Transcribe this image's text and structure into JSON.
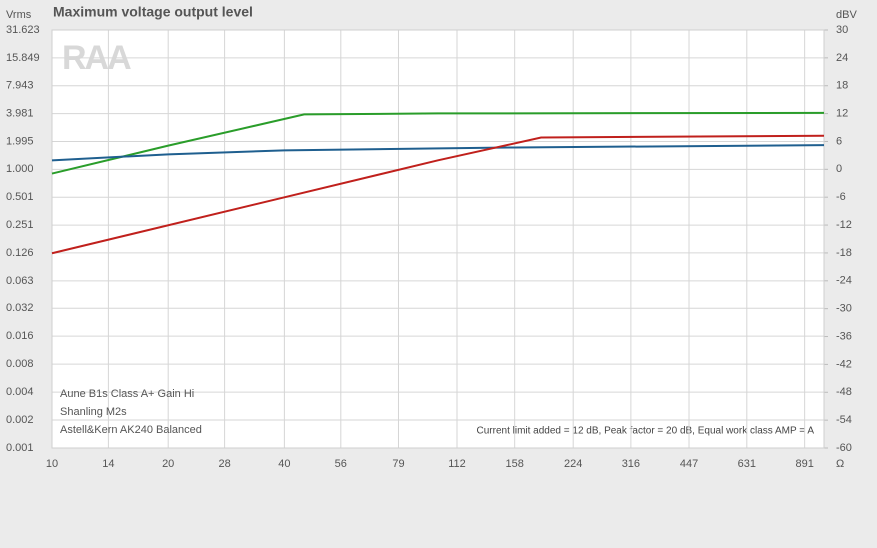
{
  "chart_data": {
    "type": "line",
    "title": "Maximum voltage output level",
    "watermark": "RAA",
    "y_label": "Vrms",
    "y2_label": "dBV",
    "x_label": "Ω",
    "annotation": "Current limit added = 12 dB, Peak factor = 20 dB, Equal work class AMP = A",
    "xlog": true,
    "ylog": true,
    "grid": true,
    "xlim": [
      10,
      1000
    ],
    "xticks": [
      10,
      14,
      20,
      28,
      40,
      56,
      79,
      112,
      158,
      224,
      316,
      447,
      631,
      891
    ],
    "ylim": [
      0.001,
      31.623
    ],
    "yticks": [
      0.001,
      0.002,
      0.004,
      0.008,
      0.016,
      0.032,
      0.063,
      0.126,
      0.251,
      0.501,
      {
        "value": 1,
        "label": "1.000"
      },
      1.995,
      3.981,
      7.943,
      15.849,
      31.623
    ],
    "y2lim": [
      -60,
      30
    ],
    "y2ticks": [
      -60,
      -54,
      -48,
      -42,
      -36,
      -30,
      -24,
      -18,
      -12,
      -6,
      0,
      6,
      12,
      18,
      24,
      30
    ],
    "legend": "bottom-left",
    "series": [
      {
        "name": "Aune B1s Class A+ Gain Hi",
        "color": "#2a9d2a",
        "x": [
          10,
          20,
          45,
          100,
          1000
        ],
        "values": [
          0.9,
          1.8,
          3.9,
          4.0,
          4.05
        ]
      },
      {
        "name": "Shanling M2s",
        "color": "#1f5f8f",
        "x": [
          10,
          20,
          40,
          158,
          1000
        ],
        "values": [
          1.25,
          1.45,
          1.6,
          1.72,
          1.82
        ]
      },
      {
        "name": "Astell&Kern AK240 Balanced",
        "color": "#c0201c",
        "x": [
          10,
          40,
          100,
          185,
          1000
        ],
        "values": [
          0.125,
          0.5,
          1.25,
          2.2,
          2.3
        ]
      }
    ]
  }
}
